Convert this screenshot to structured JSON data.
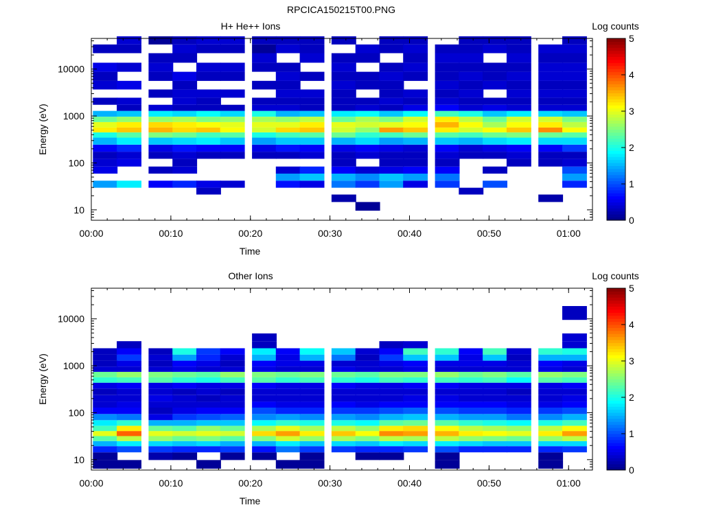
{
  "figure_title": "RPCICA150215T00.PNG",
  "chart_data": [
    {
      "type": "heatmap",
      "title": "H+ He++ Ions",
      "xlabel": "Time",
      "ylabel": "Energy (eV)",
      "y_scale": "log",
      "ylim": [
        6,
        45000
      ],
      "xlim_minutes": [
        0,
        63
      ],
      "x_ticks": [
        "00:00",
        "00:10",
        "00:20",
        "00:30",
        "00:40",
        "00:50",
        "01:00"
      ],
      "y_ticks": [
        "10",
        "100",
        "1000",
        "10000"
      ],
      "colorbar": {
        "label": "Log counts",
        "range": [
          0,
          5
        ],
        "ticks": [
          "0",
          "1",
          "2",
          "3",
          "4",
          "5"
        ]
      },
      "time_bins": [
        "00:00",
        "00:03",
        "00:07",
        "00:10",
        "00:13",
        "00:16",
        "00:20",
        "00:23",
        "00:26",
        "00:30",
        "00:33",
        "00:36",
        "00:39",
        "00:43",
        "00:46",
        "00:49",
        "00:52",
        "00:56",
        "00:59"
      ],
      "energy_bins_eV": [
        12,
        18,
        25,
        35,
        50,
        70,
        100,
        150,
        200,
        300,
        400,
        500,
        650,
        850,
        1100,
        1500,
        2000,
        3000,
        4500,
        7000,
        11000,
        17000,
        28000,
        40000
      ],
      "counts_log": [
        [
          0,
          0,
          0,
          1.4,
          0,
          0.5,
          0.4,
          0.3,
          0.6,
          1.5,
          2.0,
          3.2,
          3.0,
          2.4,
          1.5,
          0,
          0.3,
          0,
          0.4,
          0.3,
          0.5,
          0,
          0.3,
          0
        ],
        [
          0,
          0,
          0,
          1.8,
          0,
          0,
          0.5,
          0.4,
          0.8,
          1.8,
          2.3,
          3.4,
          3.2,
          2.6,
          1.6,
          0.3,
          0.4,
          0,
          0.5,
          0,
          0.4,
          0,
          0.3,
          0.4
        ],
        [
          0,
          0,
          0,
          0.6,
          0,
          0.3,
          0,
          0.3,
          0.5,
          1.6,
          2.5,
          3.5,
          3.3,
          2.6,
          1.8,
          0.4,
          0,
          0.3,
          0,
          0.3,
          0.4,
          0.3,
          0,
          0.1
        ],
        [
          0,
          0,
          0,
          0.8,
          0,
          0.4,
          0.3,
          0.4,
          0.7,
          1.7,
          2.4,
          3.3,
          3.2,
          2.7,
          1.7,
          0.3,
          0.4,
          0.4,
          0.3,
          0.5,
          0,
          0.3,
          0.4,
          0.3
        ],
        [
          0,
          0,
          0.3,
          0.5,
          0,
          0,
          0,
          0.3,
          0.6,
          1.8,
          2.2,
          3.4,
          3.1,
          2.5,
          1.9,
          0.3,
          0.3,
          0.4,
          0,
          0.3,
          0.4,
          0,
          0.3,
          0.4
        ],
        [
          0,
          0,
          0,
          0.4,
          0,
          0,
          0,
          0.3,
          0.6,
          1.6,
          2.3,
          3.1,
          3.0,
          2.6,
          1.7,
          0.3,
          0,
          0.4,
          0,
          0.3,
          0.4,
          0,
          0.3,
          0.4
        ],
        [
          0,
          0,
          0,
          0,
          0,
          0,
          0,
          0.3,
          0.5,
          1.4,
          2.0,
          2.9,
          3.0,
          2.7,
          2.0,
          0.4,
          0.3,
          0,
          0.3,
          0,
          0.3,
          0.4,
          0.1,
          0.3
        ],
        [
          0,
          0,
          0,
          0.7,
          1.4,
          0.4,
          0,
          0.3,
          0.7,
          1.6,
          2.2,
          3.3,
          3.0,
          2.6,
          1.5,
          0.4,
          0.3,
          0.4,
          0.3,
          0.4,
          0.3,
          0,
          0.4,
          0.3
        ],
        [
          0,
          0,
          0,
          0.5,
          1.6,
          0.8,
          0,
          0.4,
          0.6,
          1.6,
          2.3,
          3.4,
          3.2,
          2.8,
          1.6,
          0.3,
          0.3,
          0.4,
          0,
          0.3,
          0,
          0.4,
          0.3,
          0.3
        ],
        [
          0,
          0.2,
          0,
          1.2,
          1.5,
          0.6,
          0.3,
          0.3,
          0.5,
          1.5,
          2.4,
          2.9,
          3.0,
          2.4,
          1.8,
          0.3,
          0.3,
          0.3,
          0.4,
          0.3,
          0.4,
          0.3,
          0,
          0.3
        ],
        [
          0.1,
          0,
          0,
          0.9,
          1.3,
          0.4,
          0,
          0.4,
          0.6,
          1.7,
          2.1,
          2.6,
          2.9,
          2.7,
          1.9,
          0.4,
          0.3,
          0,
          0.3,
          0.3,
          0,
          0.3,
          0.4,
          0
        ],
        [
          0,
          0,
          0,
          1.4,
          1.6,
          0.5,
          0.3,
          0.3,
          0.5,
          1.4,
          2.2,
          3.6,
          3.0,
          2.5,
          1.6,
          0.3,
          0.4,
          0.3,
          0.3,
          0.4,
          0.3,
          0,
          0.3,
          0.3
        ],
        [
          0,
          0,
          0,
          0.5,
          1.4,
          0.6,
          0.3,
          0.3,
          0.4,
          1.5,
          2.4,
          3.4,
          3.1,
          2.9,
          1.9,
          0.5,
          0.3,
          0.4,
          0,
          0.3,
          0.4,
          0.3,
          0.4,
          0.3
        ],
        [
          0,
          0,
          0,
          0.9,
          1.2,
          0.6,
          0.3,
          0.4,
          0.6,
          1.6,
          2.3,
          3.2,
          3.5,
          3.2,
          2.2,
          0.6,
          0.4,
          0.3,
          0.4,
          0.3,
          0.3,
          0.4,
          0.3,
          0
        ],
        [
          0,
          0,
          0.3,
          0,
          0,
          0,
          0,
          0.3,
          0.4,
          1.5,
          2.2,
          2.9,
          3.1,
          2.8,
          2.0,
          0.4,
          0.3,
          0.4,
          0.3,
          0.4,
          0.3,
          0.4,
          0.3,
          0.3
        ],
        [
          0,
          0,
          0,
          1.0,
          0,
          0.3,
          0,
          0.3,
          0.5,
          1.7,
          2.4,
          3.1,
          2.7,
          2.4,
          1.6,
          0.5,
          0.3,
          0,
          0.4,
          0.3,
          0.3,
          0,
          0.4,
          0.3
        ],
        [
          0,
          0,
          0,
          0,
          0,
          0,
          0.3,
          0.4,
          0.6,
          1.8,
          2.5,
          3.4,
          3.1,
          2.9,
          1.8,
          0.4,
          0.3,
          0.4,
          0.3,
          0.4,
          0.3,
          0.4,
          0.3,
          0.3
        ],
        [
          0,
          0.2,
          0,
          0,
          0,
          0,
          0.3,
          0.3,
          0.6,
          1.7,
          2.4,
          3.7,
          3.2,
          2.9,
          1.7,
          0.4,
          0.3,
          0.4,
          0.3,
          0.4,
          0.4,
          0.3,
          0.4,
          0
        ],
        [
          0,
          0,
          0,
          0.8,
          1.4,
          1.0,
          0.4,
          0.3,
          0.9,
          1.7,
          2.3,
          3.1,
          2.8,
          2.5,
          1.6,
          0.4,
          0.3,
          0.4,
          0.3,
          0.4,
          0.4,
          0.3,
          0.4,
          0.3
        ]
      ]
    },
    {
      "type": "heatmap",
      "title": "Other Ions",
      "xlabel": "Time",
      "ylabel": "Energy (eV)",
      "y_scale": "log",
      "ylim": [
        6,
        45000
      ],
      "xlim_minutes": [
        0,
        63
      ],
      "x_ticks": [
        "00:00",
        "00:10",
        "00:20",
        "00:30",
        "00:40",
        "00:50",
        "01:00"
      ],
      "y_ticks": [
        "10",
        "100",
        "1000",
        "10000"
      ],
      "colorbar": {
        "label": "Log counts",
        "range": [
          0,
          5
        ],
        "ticks": [
          "0",
          "1",
          "2",
          "3",
          "4",
          "5"
        ]
      },
      "time_bins": [
        "00:00",
        "00:03",
        "00:07",
        "00:10",
        "00:13",
        "00:16",
        "00:20",
        "00:23",
        "00:26",
        "00:30",
        "00:33",
        "00:36",
        "00:39",
        "00:43",
        "00:46",
        "00:49",
        "00:52",
        "00:56",
        "00:59"
      ],
      "energy_bins_eV": [
        8,
        12,
        17,
        22,
        28,
        36,
        46,
        60,
        80,
        110,
        150,
        200,
        280,
        380,
        500,
        650,
        850,
        1100,
        1500,
        2000,
        2800,
        4000,
        6000,
        15000
      ],
      "counts_log": [
        [
          0.1,
          0.1,
          0.8,
          1.5,
          2.3,
          3.0,
          2.2,
          1.8,
          1.3,
          0.6,
          0.4,
          0.4,
          0.3,
          0.5,
          2.1,
          2.4,
          0.4,
          0.3,
          0.3,
          0.3,
          0,
          0,
          0,
          0
        ],
        [
          0.1,
          0,
          1.0,
          1.8,
          2.8,
          3.9,
          3.2,
          2.1,
          1.2,
          0.6,
          0.5,
          0.4,
          0.4,
          0.6,
          2.2,
          2.6,
          0.4,
          0.5,
          0.9,
          0.6,
          0.3,
          0,
          0,
          0
        ],
        [
          0,
          0.2,
          0.9,
          1.7,
          2.6,
          3.0,
          2.4,
          1.5,
          0.5,
          0.3,
          0.4,
          0.5,
          0.4,
          0.5,
          2.3,
          2.5,
          0.4,
          0.3,
          0.4,
          0.3,
          0,
          0,
          0,
          0
        ],
        [
          0,
          0.1,
          0.8,
          1.6,
          2.4,
          2.9,
          2.3,
          1.5,
          0.9,
          0.5,
          0.4,
          0.4,
          0.3,
          0.6,
          2.1,
          2.4,
          0.5,
          0.6,
          1.4,
          2.0,
          0,
          0,
          0,
          0
        ],
        [
          0.1,
          0,
          0.8,
          1.7,
          2.5,
          3.0,
          2.6,
          1.6,
          1.0,
          0.6,
          0.4,
          0.3,
          0.4,
          0.5,
          2.0,
          2.3,
          0.4,
          0.5,
          0.8,
          0.9,
          0,
          0,
          0,
          0
        ],
        [
          0,
          0.1,
          0.9,
          1.5,
          2.3,
          2.9,
          2.4,
          1.6,
          1.1,
          0.6,
          0.4,
          0.4,
          0.3,
          0.5,
          2.2,
          2.6,
          0.4,
          0.3,
          0.4,
          0.6,
          0,
          0,
          0,
          0
        ],
        [
          0,
          0.1,
          0.7,
          1.5,
          2.5,
          3.3,
          2.7,
          1.9,
          1.3,
          1.0,
          0.6,
          0.4,
          0.4,
          0.6,
          2.3,
          2.5,
          0.5,
          0.6,
          1.5,
          1.8,
          0.3,
          0.3,
          0,
          0
        ],
        [
          0.1,
          0,
          1.2,
          1.8,
          2.9,
          3.6,
          3.0,
          2.1,
          1.4,
          0.8,
          0.5,
          0.4,
          0.4,
          0.5,
          2.1,
          2.4,
          0.4,
          0.5,
          0.5,
          0.6,
          0,
          0,
          0,
          0
        ],
        [
          0.1,
          0.1,
          0.9,
          1.6,
          2.6,
          3.2,
          2.7,
          2.0,
          1.3,
          0.8,
          0.5,
          0.4,
          0.4,
          0.5,
          2.2,
          2.5,
          0.4,
          0.5,
          1.5,
          1.9,
          0,
          0,
          0,
          0
        ],
        [
          0,
          0,
          0.9,
          1.7,
          2.7,
          3.4,
          2.8,
          2.0,
          1.4,
          0.9,
          0.6,
          0.4,
          0.4,
          0.6,
          2.1,
          2.4,
          0.5,
          0.4,
          1.2,
          1.6,
          0,
          0,
          0,
          0
        ],
        [
          0,
          0.1,
          0.8,
          1.6,
          2.5,
          3.1,
          2.6,
          1.9,
          1.3,
          0.9,
          0.5,
          0.4,
          0.4,
          0.5,
          2.0,
          2.3,
          0.4,
          0.4,
          0.3,
          0.4,
          0,
          0,
          0,
          0
        ],
        [
          0,
          0.1,
          0.8,
          1.8,
          2.8,
          3.7,
          3.2,
          2.3,
          1.5,
          1.0,
          0.6,
          0.4,
          0.4,
          0.5,
          2.2,
          2.5,
          0.4,
          0.5,
          0.9,
          0.6,
          0.3,
          0,
          0,
          0
        ],
        [
          0,
          0,
          0.9,
          1.7,
          2.7,
          3.6,
          3.3,
          2.4,
          1.6,
          1.1,
          0.6,
          0.5,
          0.4,
          0.6,
          2.1,
          2.5,
          0.5,
          0.6,
          1.6,
          2.2,
          0.4,
          0,
          0,
          0
        ],
        [
          0.1,
          0.1,
          1.0,
          1.8,
          2.8,
          3.5,
          3.1,
          2.3,
          1.5,
          1.0,
          0.6,
          0.5,
          0.4,
          0.6,
          2.2,
          2.6,
          0.4,
          0.5,
          1.6,
          2.1,
          0,
          0,
          0,
          0
        ],
        [
          0,
          0,
          0.8,
          1.7,
          2.6,
          3.2,
          2.8,
          2.1,
          1.4,
          0.9,
          0.6,
          0.4,
          0.4,
          0.5,
          2.1,
          2.4,
          0.4,
          0.5,
          0.5,
          0.6,
          0,
          0,
          0,
          0
        ],
        [
          0,
          0,
          0.8,
          1.6,
          2.5,
          3.1,
          2.7,
          2.0,
          1.4,
          0.9,
          0.6,
          0.4,
          0.4,
          0.5,
          2.2,
          2.5,
          0.4,
          0.5,
          1.6,
          2.2,
          0,
          0,
          0,
          0
        ],
        [
          0,
          0,
          0.8,
          1.6,
          2.4,
          3.0,
          2.6,
          1.9,
          1.2,
          0.8,
          0.5,
          0.4,
          0.3,
          0.5,
          1.9,
          2.3,
          0.4,
          0.4,
          0.3,
          0.4,
          0,
          0,
          0,
          0
        ],
        [
          0.1,
          0.1,
          0.8,
          1.7,
          2.6,
          3.2,
          2.8,
          2.0,
          1.3,
          0.9,
          0.5,
          0.4,
          0.4,
          0.5,
          2.3,
          2.6,
          0.5,
          0.6,
          1.5,
          2.1,
          0,
          0,
          0,
          0
        ],
        [
          0,
          0,
          0.9,
          1.7,
          2.8,
          3.6,
          3.1,
          2.2,
          1.5,
          1.0,
          0.6,
          0.5,
          0.4,
          0.6,
          2.2,
          2.5,
          0.4,
          0.5,
          1.5,
          2.0,
          0.4,
          0.4,
          0,
          0.3
        ]
      ]
    }
  ]
}
